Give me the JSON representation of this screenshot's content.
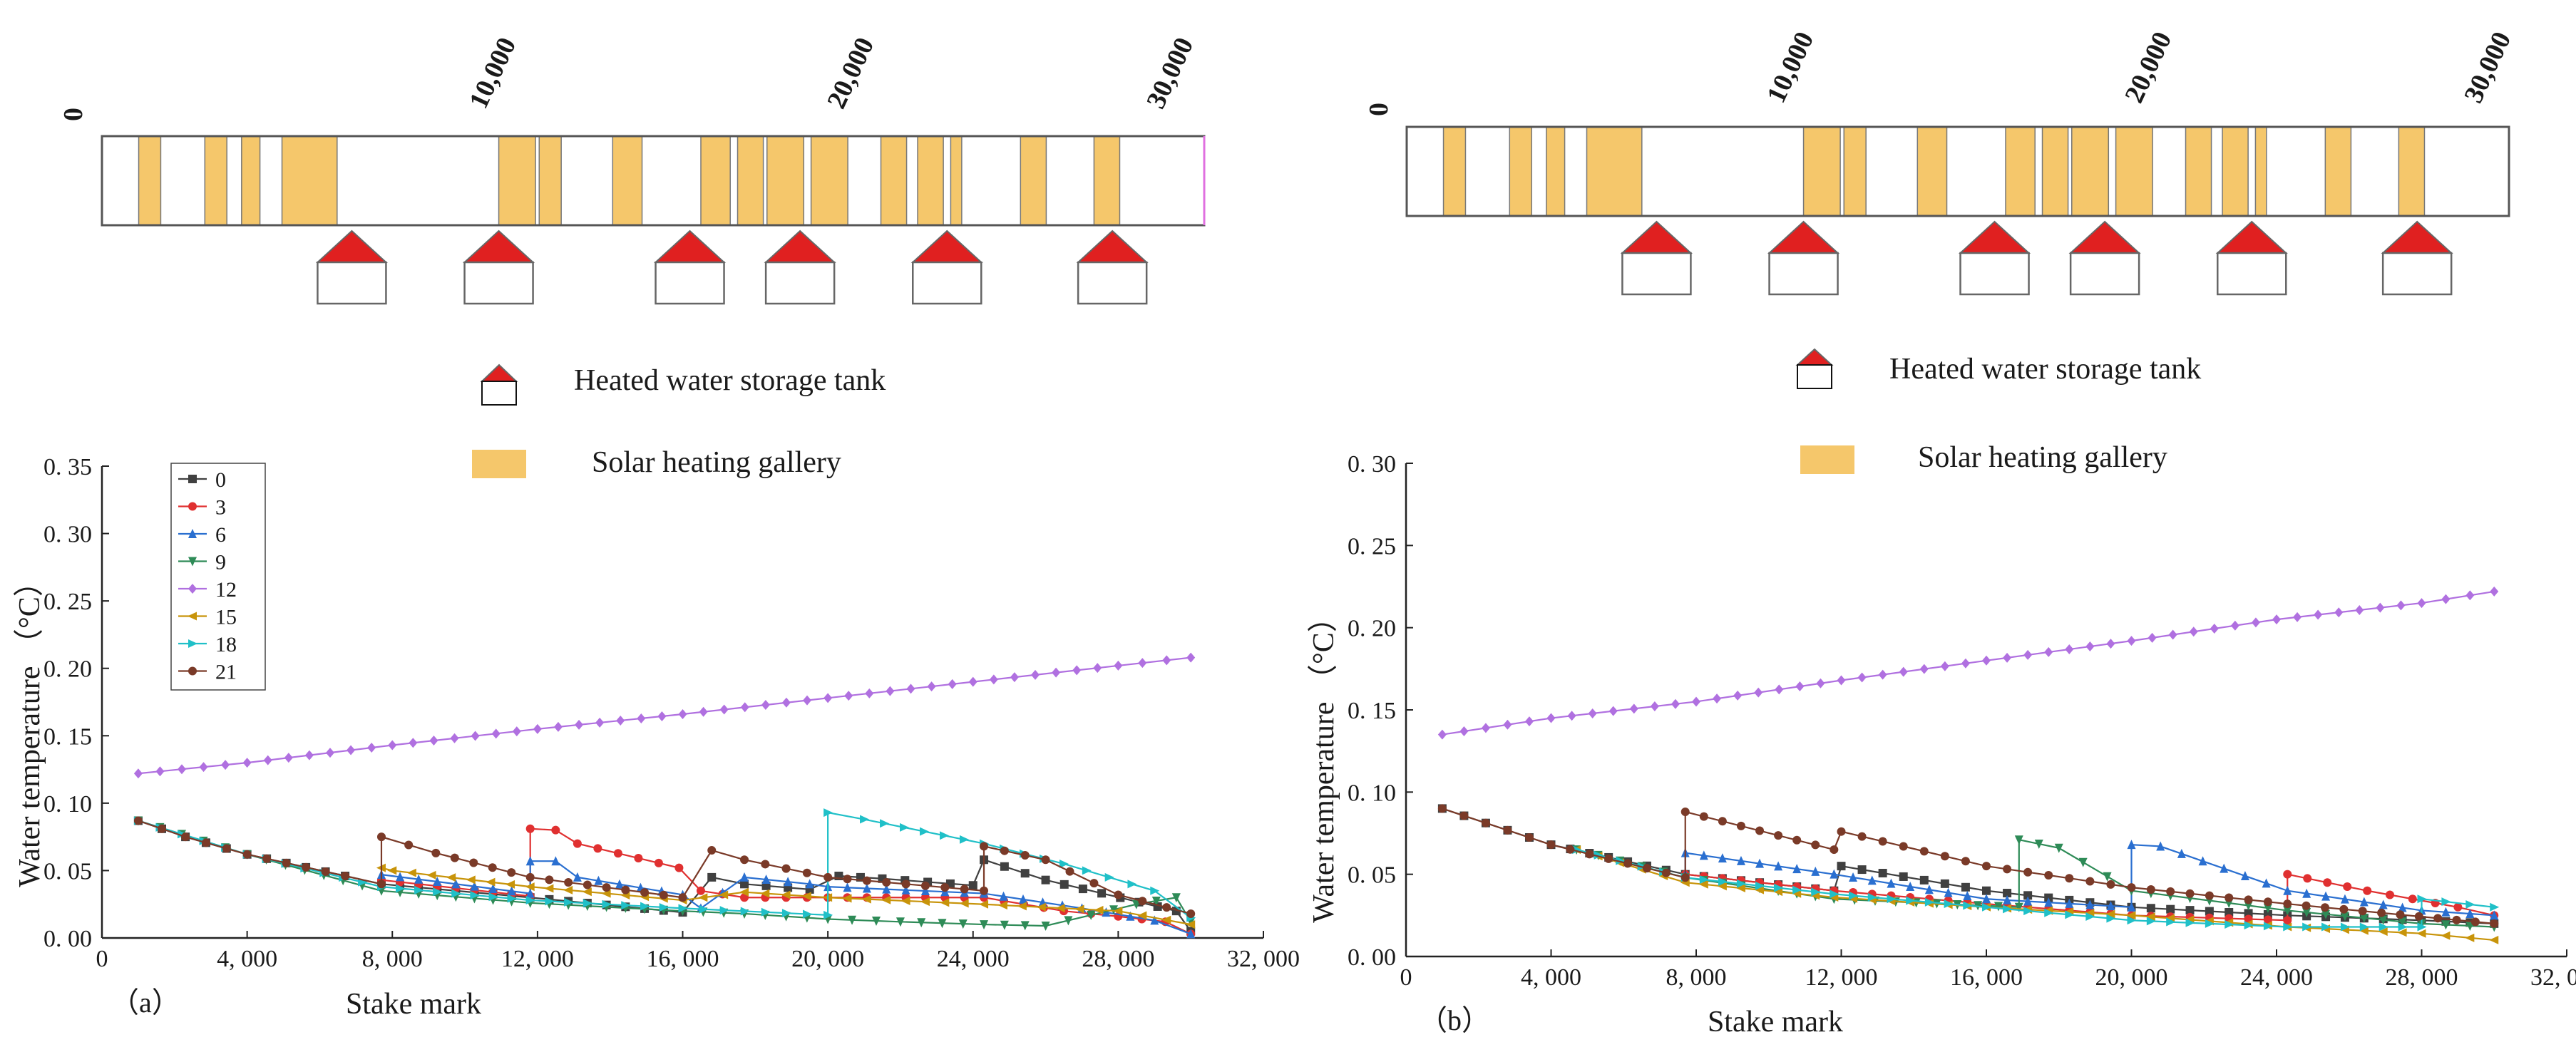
{
  "figure": {
    "panels": [
      {
        "id": "a",
        "panel_label": "（a）",
        "schematic": {
          "ticks": [
            "0",
            "10,000",
            "20,000",
            "30,000"
          ],
          "tick_positions_m": [
            0,
            10000,
            20000,
            30000
          ],
          "galleries_m": [
            [
              1000,
              1600
            ],
            [
              2800,
              3400
            ],
            [
              3800,
              4300
            ],
            [
              4900,
              6400
            ],
            [
              10800,
              11800
            ],
            [
              11900,
              12500
            ],
            [
              13900,
              14700
            ],
            [
              16300,
              17100
            ],
            [
              17300,
              18000
            ],
            [
              18100,
              19100
            ],
            [
              19300,
              20300
            ],
            [
              21200,
              21900
            ],
            [
              22200,
              22900
            ],
            [
              23100,
              23400
            ],
            [
              25000,
              25700
            ],
            [
              27000,
              27700
            ]
          ],
          "tanks_m": [
            6800,
            10800,
            16000,
            19000,
            23000,
            27500
          ],
          "track_length_m": 30000
        },
        "legend": {
          "tank_label": "Heated water storage tank",
          "gallery_label": "Solar heating gallery"
        },
        "chart_data": {
          "type": "line",
          "title": "",
          "xlabel": "Stake mark",
          "ylabel": "Water temperature （°C）",
          "xlim": [
            0,
            32000
          ],
          "ylim": [
            0,
            0.35
          ],
          "xticks": [
            0,
            4000,
            8000,
            12000,
            16000,
            20000,
            24000,
            28000,
            32000
          ],
          "xtick_labels": [
            "0",
            "4, 000",
            "8, 000",
            "12, 000",
            "16, 000",
            "20, 000",
            "24, 000",
            "28, 000",
            "32, 000"
          ],
          "yticks": [
            0,
            0.05,
            0.1,
            0.15,
            0.2,
            0.25,
            0.3,
            0.35
          ],
          "ytick_labels": [
            "0. 00",
            "0. 05",
            "0. 10",
            "0. 15",
            "0. 20",
            "0. 25",
            "0. 30",
            "0. 35"
          ],
          "legend_position": "top-left",
          "series": [
            {
              "name": "0",
              "color": "#404040",
              "marker": "square",
              "x": [
                1000,
                2300,
                4000,
                6700,
                7700,
                11800,
                16000,
                16800,
                17700,
                19500,
                20300,
                21500,
                24000,
                24300,
                26000,
                29600,
                30000
              ],
              "y": [
                0.087,
                0.075,
                0.062,
                0.046,
                0.04,
                0.03,
                0.019,
                0.045,
                0.04,
                0.036,
                0.046,
                0.044,
                0.039,
                0.058,
                0.043,
                0.02,
                0.005
              ]
            },
            {
              "name": "3",
              "color": "#e03030",
              "marker": "circle",
              "x": [
                7700,
                11800,
                11800,
                12500,
                13100,
                15900,
                16500,
                17700,
                20000,
                24300,
                26500,
                28000,
                29300,
                30000
              ],
              "y": [
                0.043,
                0.031,
                0.081,
                0.08,
                0.07,
                0.052,
                0.035,
                0.03,
                0.03,
                0.03,
                0.02,
                0.016,
                0.012,
                0.003
              ]
            },
            {
              "name": "6",
              "color": "#2a6fd0",
              "marker": "triangle-up",
              "x": [
                7700,
                11800,
                11800,
                12500,
                13100,
                16000,
                16500,
                17700,
                19500,
                20000,
                24300,
                27000,
                29000,
                30000
              ],
              "y": [
                0.047,
                0.033,
                0.057,
                0.057,
                0.045,
                0.032,
                0.022,
                0.045,
                0.04,
                0.038,
                0.033,
                0.022,
                0.013,
                0.003
              ]
            },
            {
              "name": "9",
              "color": "#2e8b57",
              "marker": "triangle-down",
              "x": [
                1000,
                4000,
                7700,
                11800,
                16000,
                17700,
                20000,
                22000,
                24300,
                26000,
                28500,
                29600,
                30000
              ],
              "y": [
                0.087,
                0.062,
                0.035,
                0.026,
                0.02,
                0.018,
                0.014,
                0.012,
                0.01,
                0.009,
                0.025,
                0.03,
                0.012
              ]
            },
            {
              "name": "12",
              "color": "#b070e0",
              "marker": "diamond",
              "x": [
                1000,
                4000,
                8000,
                12000,
                16000,
                20000,
                24000,
                28000,
                30000
              ],
              "y": [
                0.122,
                0.13,
                0.143,
                0.155,
                0.166,
                0.178,
                0.19,
                0.202,
                0.208
              ]
            },
            {
              "name": "15",
              "color": "#c8940a",
              "marker": "triangle-left",
              "x": [
                7700,
                8000,
                11800,
                16000,
                17700,
                20000,
                24300,
                28000,
                30000
              ],
              "y": [
                0.052,
                0.05,
                0.038,
                0.028,
                0.034,
                0.03,
                0.025,
                0.02,
                0.01
              ]
            },
            {
              "name": "18",
              "color": "#20c0c8",
              "marker": "triangle-right",
              "x": [
                1000,
                4000,
                7700,
                11800,
                16000,
                20000,
                20000,
                21000,
                24300,
                26500,
                29000,
                30000
              ],
              "y": [
                0.087,
                0.062,
                0.038,
                0.028,
                0.022,
                0.017,
                0.093,
                0.088,
                0.07,
                0.055,
                0.035,
                0.015
              ]
            },
            {
              "name": "21",
              "color": "#7a3a28",
              "marker": "circle",
              "x": [
                1000,
                2300,
                4000,
                6700,
                7700,
                7700,
                9200,
                11800,
                16000,
                16800,
                17700,
                20000,
                24300,
                24300,
                26000,
                28000,
                30000
              ],
              "y": [
                0.087,
                0.075,
                0.062,
                0.046,
                0.04,
                0.075,
                0.063,
                0.045,
                0.03,
                0.065,
                0.058,
                0.045,
                0.035,
                0.068,
                0.058,
                0.032,
                0.018
              ]
            }
          ]
        }
      },
      {
        "id": "b",
        "panel_label": "（b）",
        "schematic": {
          "ticks": [
            "0",
            "10,000",
            "20,000",
            "30,000"
          ],
          "tick_positions_m": [
            0,
            10000,
            20000,
            30000
          ],
          "galleries_m": [
            [
              1000,
              1600
            ],
            [
              2800,
              3400
            ],
            [
              3800,
              4300
            ],
            [
              4900,
              6400
            ],
            [
              10800,
              11800
            ],
            [
              11900,
              12500
            ],
            [
              13900,
              14700
            ],
            [
              16300,
              17100
            ],
            [
              17300,
              18000
            ],
            [
              18100,
              19100
            ],
            [
              19300,
              20300
            ],
            [
              21200,
              21900
            ],
            [
              22200,
              22900
            ],
            [
              23100,
              23400
            ],
            [
              25000,
              25700
            ],
            [
              27000,
              27700
            ]
          ],
          "tanks_m": [
            6800,
            10800,
            16000,
            19000,
            23000,
            27500
          ],
          "track_length_m": 30000
        },
        "legend": {
          "tank_label": "Heated water storage tank",
          "gallery_label": "Solar heating gallery"
        },
        "chart_data": {
          "type": "line",
          "title": "",
          "xlabel": "Stake mark",
          "ylabel": "Water temperature （°C）",
          "xlim": [
            0,
            32000
          ],
          "ylim": [
            0,
            0.3
          ],
          "xticks": [
            0,
            4000,
            8000,
            12000,
            16000,
            20000,
            24000,
            28000,
            32000
          ],
          "xtick_labels": [
            "0",
            "4, 000",
            "8, 000",
            "12, 000",
            "16, 000",
            "20, 000",
            "24, 000",
            "28, 000",
            "32, 000"
          ],
          "yticks": [
            0,
            0.05,
            0.1,
            0.15,
            0.2,
            0.25,
            0.3
          ],
          "ytick_labels": [
            "0. 00",
            "0. 05",
            "0. 10",
            "0. 15",
            "0. 20",
            "0. 25",
            "0. 30"
          ],
          "legend_position": "none",
          "series": [
            {
              "name": "0",
              "color": "#404040",
              "marker": "square",
              "x": [
                1000,
                4000,
                7700,
                11800,
                12000,
                16000,
                20000,
                24300,
                28000,
                30000
              ],
              "y": [
                0.09,
                0.068,
                0.05,
                0.04,
                0.055,
                0.04,
                0.03,
                0.025,
                0.022,
                0.02
              ]
            },
            {
              "name": "3",
              "color": "#e03030",
              "marker": "circle",
              "x": [
                7700,
                11800,
                16000,
                20000,
                24300,
                24300,
                26500,
                29000,
                30000
              ],
              "y": [
                0.05,
                0.04,
                0.032,
                0.025,
                0.022,
                0.05,
                0.04,
                0.03,
                0.025
              ]
            },
            {
              "name": "6",
              "color": "#2a6fd0",
              "marker": "triangle-up",
              "x": [
                7700,
                7700,
                11800,
                16000,
                20000,
                20000,
                20800,
                24300,
                28000,
                30000
              ],
              "y": [
                0.05,
                0.063,
                0.05,
                0.035,
                0.03,
                0.068,
                0.067,
                0.04,
                0.028,
                0.025
              ]
            },
            {
              "name": "9",
              "color": "#2e8b57",
              "marker": "triangle-down",
              "x": [
                4700,
                7700,
                11800,
                16900,
                16900,
                18000,
                20000,
                24300,
                28000,
                30000
              ],
              "y": [
                0.065,
                0.048,
                0.035,
                0.03,
                0.071,
                0.066,
                0.04,
                0.028,
                0.02,
                0.018
              ]
            },
            {
              "name": "12",
              "color": "#b070e0",
              "marker": "diamond",
              "x": [
                1000,
                4000,
                8000,
                12000,
                16000,
                20000,
                24000,
                28000,
                30000
              ],
              "y": [
                0.135,
                0.145,
                0.155,
                0.168,
                0.18,
                0.192,
                0.205,
                0.215,
                0.222
              ]
            },
            {
              "name": "15",
              "color": "#c8940a",
              "marker": "triangle-left",
              "x": [
                4700,
                7700,
                11800,
                16000,
                20000,
                24300,
                28000,
                30000
              ],
              "y": [
                0.065,
                0.045,
                0.036,
                0.03,
                0.025,
                0.018,
                0.014,
                0.01
              ]
            },
            {
              "name": "18",
              "color": "#20c0c8",
              "marker": "triangle-right",
              "x": [
                4700,
                7700,
                11800,
                16000,
                20000,
                24300,
                28000,
                28000,
                30000
              ],
              "y": [
                0.065,
                0.048,
                0.038,
                0.03,
                0.022,
                0.018,
                0.018,
                0.035,
                0.03
              ]
            },
            {
              "name": "21",
              "color": "#7a3a28",
              "marker": "circle",
              "x": [
                1000,
                4000,
                7700,
                7700,
                11800,
                12000,
                16000,
                20000,
                24300,
                30000
              ],
              "y": [
                0.09,
                0.068,
                0.048,
                0.088,
                0.065,
                0.076,
                0.055,
                0.042,
                0.032,
                0.02
              ]
            }
          ]
        }
      }
    ]
  }
}
